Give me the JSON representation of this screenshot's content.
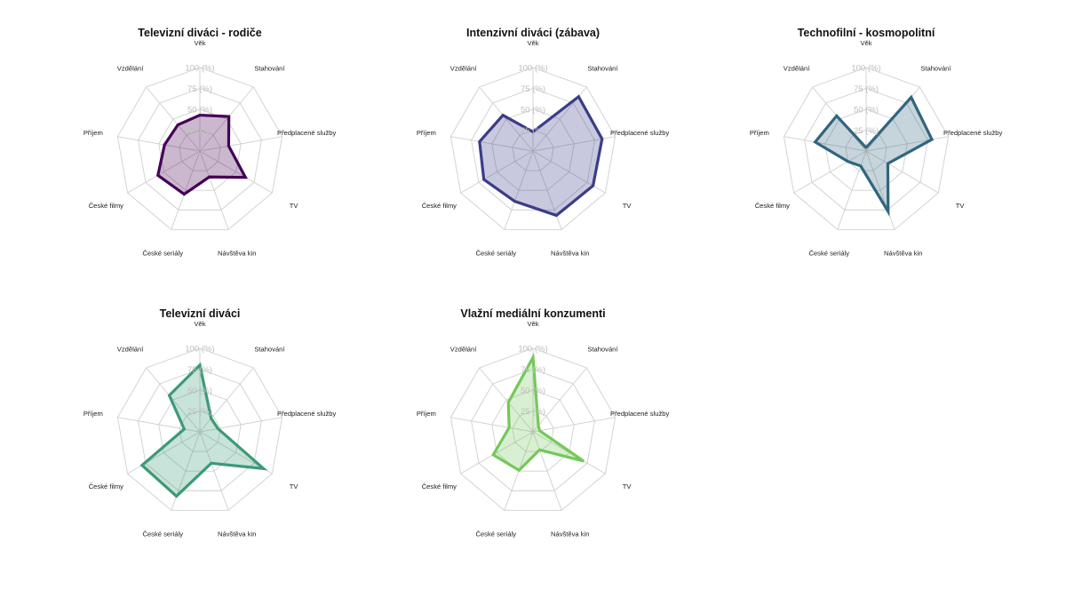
{
  "chart_data": [
    {
      "type": "radar",
      "title": "Televizní diváci - rodiče",
      "axes": [
        "Věk",
        "Stahování",
        "Předplacené služby",
        "TV",
        "Návštěva kin",
        "České seriály",
        "České filmy",
        "Příjem",
        "Vzdělání"
      ],
      "ticks": [
        "0",
        "25 (%)",
        "50 (%)",
        "75 (%)",
        "100 (%)"
      ],
      "rlim": [
        0,
        100
      ],
      "grid": true,
      "series": [
        {
          "values": [
            43,
            54,
            35,
            63,
            33,
            55,
            58,
            43,
            41
          ],
          "color": "#440154"
        }
      ]
    },
    {
      "type": "radar",
      "title": "Intenzivní diváci (zábava)",
      "axes": [
        "Věk",
        "Stahování",
        "Předplacené služby",
        "TV",
        "Návštěva kin",
        "České seriály",
        "České filmy",
        "Příjem",
        "Vzdělání"
      ],
      "ticks": [
        "0",
        "25 (%)",
        "50 (%)",
        "75 (%)",
        "100 (%)"
      ],
      "rlim": [
        0,
        100
      ],
      "grid": true,
      "series": [
        {
          "values": [
            23,
            85,
            84,
            83,
            82,
            64,
            68,
            65,
            56
          ],
          "color": "#3b3d87"
        }
      ]
    },
    {
      "type": "radar",
      "title": "Technofilní - kosmopolitní",
      "axes": [
        "Věk",
        "Stahování",
        "Předplacené služby",
        "TV",
        "Návštěva kin",
        "České seriály",
        "České filmy",
        "Příjem",
        "Vzdělání"
      ],
      "ticks": [
        "0",
        "25 (%)",
        "50 (%)",
        "75 (%)",
        "100 (%)"
      ],
      "rlim": [
        0,
        100
      ],
      "grid": true,
      "series": [
        {
          "values": [
            4,
            84,
            80,
            30,
            77,
            19,
            25,
            62,
            55
          ],
          "color": "#31657f"
        }
      ]
    },
    {
      "type": "radar",
      "title": "Televizní diváci",
      "axes": [
        "Věk",
        "Stahování",
        "Předplacené služby",
        "TV",
        "Návštěva kin",
        "České seriály",
        "České filmy",
        "Příjem",
        "Vzdělání"
      ],
      "ticks": [
        "0",
        "25 (%)",
        "50 (%)",
        "75 (%)",
        "100 (%)"
      ],
      "rlim": [
        0,
        100
      ],
      "grid": true,
      "series": [
        {
          "values": [
            80,
            21,
            22,
            88,
            40,
            82,
            80,
            19,
            57
          ],
          "color": "#3b9b76"
        }
      ]
    },
    {
      "type": "radar",
      "title": "Vlažní mediální konzumenti",
      "axes": [
        "Věk",
        "Stahování",
        "Předplacené služby",
        "TV",
        "Návštěva kin",
        "České seriály",
        "České filmy",
        "Příjem",
        "Vzdělání"
      ],
      "ticks": [
        "0",
        "25 (%)",
        "50 (%)",
        "75 (%)",
        "100 (%)"
      ],
      "rlim": [
        0,
        100
      ],
      "grid": true,
      "series": [
        {
          "values": [
            89,
            10,
            8,
            70,
            23,
            49,
            55,
            29,
            46
          ],
          "color": "#74c85a"
        }
      ]
    }
  ]
}
